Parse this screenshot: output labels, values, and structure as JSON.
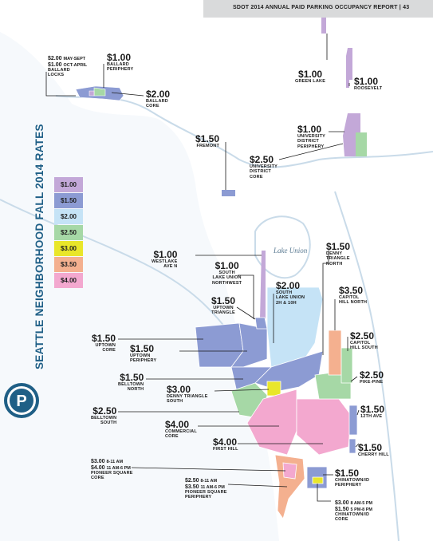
{
  "header": {
    "title": "SDOT 2014 ANNUAL PAID PARKING OCCUPANCY REPORT | 43"
  },
  "side_title": "SEATTLE NEIGHBORHOOD FALL 2014 RATES",
  "logo": {
    "letter": "P",
    "icon": "parking-icon"
  },
  "water_label": "Lake Union",
  "legend": [
    {
      "label": "$1.00",
      "color": "#c3a8d8"
    },
    {
      "label": "$1.50",
      "color": "#8c9bd3"
    },
    {
      "label": "$2.00",
      "color": "#c5e3f6"
    },
    {
      "label": "$2.50",
      "color": "#a6d8a6"
    },
    {
      "label": "$3.00",
      "color": "#e9e62a"
    },
    {
      "label": "$3.50",
      "color": "#f4b08f"
    },
    {
      "label": "$4.00",
      "color": "#f3a8cf"
    }
  ],
  "areas": {
    "ballard_locks": {
      "line1": "$2.00",
      "line1_time": "MAY-SEPT",
      "line2": "$1.00",
      "line2_time": "OCT-APRIL",
      "name1": "BALLARD",
      "name2": "LOCKS"
    },
    "ballard_periphery": {
      "price": "$1.00",
      "name1": "BALLARD",
      "name2": "PERIPHERY"
    },
    "ballard_core": {
      "price": "$2.00",
      "name1": "BALLARD",
      "name2": "CORE"
    },
    "green_lake": {
      "price": "$1.00",
      "name1": "GREEN LAKE"
    },
    "roosevelt": {
      "price": "$1.00",
      "name1": "ROOSEVELT"
    },
    "fremont": {
      "price": "$1.50",
      "name1": "FREMONT"
    },
    "university_district_core": {
      "price": "$2.50",
      "name1": "UNIVERSITY",
      "name2": "DISTRICT",
      "name3": "CORE"
    },
    "university_district_periphery": {
      "price": "$1.00",
      "name1": "UNIVERSITY",
      "name2": "DISTRICT",
      "name3": "PERIPHERY"
    },
    "westlake_ave_n": {
      "price": "$1.00",
      "name1": "WESTLAKE",
      "name2": "AVE N"
    },
    "south_lake_union_northwest": {
      "price": "$1.00",
      "name1": "SOUTH",
      "name2": "LAKE UNION",
      "name3": "NORTHWEST"
    },
    "south_lake_union_2h_10h": {
      "price": "$2.00",
      "name1": "SOUTH",
      "name2": "LAKE UNION",
      "name3": "2H & 10H"
    },
    "denny_triangle_north": {
      "price": "$1.50",
      "name1": "DENNY",
      "name2": "TRIANGLE",
      "name3": "NORTH"
    },
    "capitol_hill_north": {
      "price": "$3.50",
      "name1": "CAPITOL",
      "name2": "HILL NORTH"
    },
    "uptown_triangle": {
      "price": "$1.50",
      "name1": "UPTOWN",
      "name2": "TRIANGLE"
    },
    "uptown_core": {
      "price": "$1.50",
      "name1": "UPTOWN",
      "name2": "CORE"
    },
    "uptown_periphery": {
      "price": "$1.50",
      "name1": "UPTOWN",
      "name2": "PERIPHERY"
    },
    "capitol_hill_south": {
      "price": "$2.50",
      "name1": "CAPITOL",
      "name2": "HILL SOUTH"
    },
    "belltown_north": {
      "price": "$1.50",
      "name1": "BELLTOWN",
      "name2": "NORTH"
    },
    "denny_triangle_south": {
      "price": "$3.00",
      "name1": "DENNY TRIANGLE",
      "name2": "SOUTH"
    },
    "pike_pine": {
      "price": "$2.50",
      "name1": "PIKE-PINE"
    },
    "belltown_south": {
      "price": "$2.50",
      "name1": "BELLTOWN",
      "name2": "SOUTH"
    },
    "twelfth_ave": {
      "price": "$1.50",
      "name1": "12TH AVE"
    },
    "commercial_core": {
      "price": "$4.00",
      "name1": "COMMERCIAL",
      "name2": "CORE"
    },
    "first_hill": {
      "price": "$4.00",
      "name1": "FIRST HILL"
    },
    "cherry_hill": {
      "price": "$1.50",
      "name1": "CHERRY HILL"
    },
    "pioneer_square_core": {
      "line1": "$3.00",
      "line1_time": "8-11 AM",
      "line2": "$4.00",
      "line2_time": "11 AM-6 PM",
      "name1": "PIONEER SQUARE",
      "name2": "CORE"
    },
    "chinatown_periphery": {
      "price": "$1.50",
      "name1": "CHINATOWN/ID",
      "name2": "PERIPHERY"
    },
    "pioneer_square_periphery": {
      "line1": "$2.50",
      "line1_time": "8-11 AM",
      "line2": "$3.50",
      "line2_time": "11 AM-6 PM",
      "name1": "PIONEER SQUARE",
      "name2": "PERIPHERY"
    },
    "chinatown_core": {
      "line1": "$3.00",
      "line1_time": "8 AM-5 PM",
      "line2": "$1.50",
      "line2_time": "5 PM-8 PM",
      "name1": "CHINATOWN/ID",
      "name2": "CORE"
    }
  }
}
